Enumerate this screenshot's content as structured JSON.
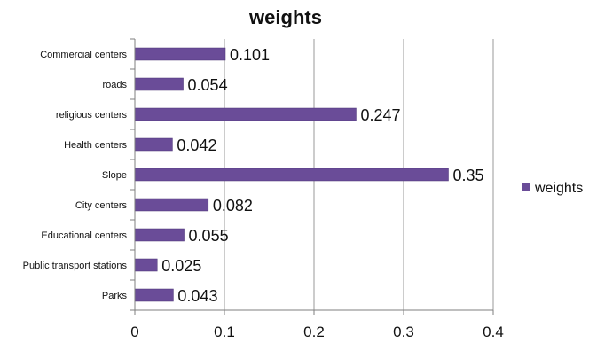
{
  "chart_data": {
    "type": "bar",
    "orientation": "horizontal",
    "title": "weights",
    "categories": [
      "Commercial centers",
      "roads",
      "religious centers",
      "Health centers",
      "Slope",
      "City centers",
      "Educational centers",
      "Public transport stations",
      "Parks"
    ],
    "series": [
      {
        "name": "weights",
        "values": [
          0.101,
          0.054,
          0.247,
          0.042,
          0.35,
          0.082,
          0.055,
          0.025,
          0.043
        ],
        "data_labels": [
          "0.101",
          "0.054",
          "0.247",
          "0.042",
          "0.35",
          "0.082",
          "0.055",
          "0.025",
          "0.043"
        ]
      }
    ],
    "xlim": [
      0,
      0.4
    ],
    "xticks": [
      0,
      0.1,
      0.2,
      0.3,
      0.4
    ],
    "xtick_labels": [
      "0",
      "0.1",
      "0.2",
      "0.3",
      "0.4"
    ],
    "grid": "vertical gridlines",
    "legend": "right",
    "colors": {
      "bar": "#6a4c98",
      "bar_edge": "#4b3476",
      "grid": "#9a9a9a",
      "axis": "#7f7f7f"
    }
  }
}
